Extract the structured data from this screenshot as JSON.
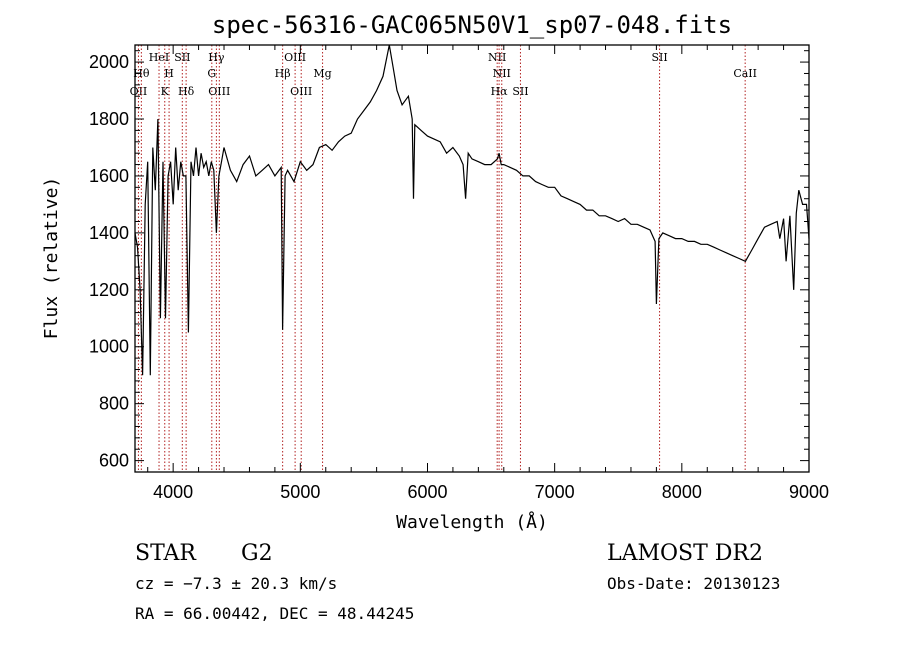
{
  "chart_data": {
    "type": "line",
    "title": "spec-56316-GAC065N50V1_sp07-048.fits",
    "xlabel": "Wavelength (Å)",
    "ylabel": "Flux (relative)",
    "xlim": [
      3700,
      9000
    ],
    "ylim": [
      560,
      2060
    ],
    "x_ticks": [
      4000,
      5000,
      6000,
      7000,
      8000,
      9000
    ],
    "y_ticks": [
      600,
      800,
      1000,
      1200,
      1400,
      1600,
      1800,
      2000
    ],
    "grid": false,
    "line_color": "#000000",
    "marker_color": "#b22222",
    "series": [
      {
        "x": [
          3700,
          3720,
          3740,
          3760,
          3780,
          3800,
          3820,
          3840,
          3860,
          3880,
          3900,
          3920,
          3940,
          3960,
          3980,
          4000,
          4020,
          4040,
          4060,
          4080,
          4100,
          4120,
          4140,
          4160,
          4180,
          4200,
          4220,
          4240,
          4260,
          4280,
          4300,
          4320,
          4340,
          4360,
          4380,
          4400,
          4450,
          4500,
          4550,
          4600,
          4650,
          4700,
          4750,
          4800,
          4850,
          4861,
          4880,
          4900,
          4950,
          5000,
          5050,
          5100,
          5150,
          5200,
          5250,
          5300,
          5350,
          5400,
          5450,
          5500,
          5550,
          5600,
          5650,
          5700,
          5730,
          5760,
          5800,
          5850,
          5880,
          5890,
          5900,
          5950,
          6000,
          6050,
          6100,
          6150,
          6200,
          6250,
          6280,
          6300,
          6320,
          6350,
          6400,
          6450,
          6500,
          6550,
          6563,
          6580,
          6600,
          6650,
          6700,
          6750,
          6800,
          6850,
          6900,
          6950,
          7000,
          7050,
          7100,
          7150,
          7200,
          7250,
          7300,
          7350,
          7400,
          7450,
          7500,
          7550,
          7600,
          7650,
          7700,
          7750,
          7790,
          7800,
          7820,
          7850,
          7900,
          7950,
          8000,
          8050,
          8100,
          8150,
          8200,
          8250,
          8300,
          8350,
          8400,
          8450,
          8500,
          8550,
          8600,
          8650,
          8700,
          8750,
          8770,
          8800,
          8820,
          8850,
          8880,
          8900,
          8920,
          8950,
          8980,
          9000
        ],
        "y": [
          1400,
          1350,
          1200,
          900,
          1500,
          1650,
          900,
          1700,
          1550,
          1800,
          1100,
          1650,
          1100,
          1600,
          1650,
          1500,
          1700,
          1550,
          1650,
          1600,
          1600,
          1050,
          1650,
          1600,
          1700,
          1600,
          1680,
          1630,
          1650,
          1600,
          1650,
          1620,
          1400,
          1600,
          1650,
          1700,
          1620,
          1580,
          1640,
          1670,
          1600,
          1620,
          1640,
          1600,
          1630,
          1060,
          1600,
          1620,
          1580,
          1650,
          1620,
          1640,
          1700,
          1710,
          1690,
          1720,
          1740,
          1750,
          1800,
          1830,
          1860,
          1900,
          1950,
          2060,
          1980,
          1900,
          1850,
          1880,
          1800,
          1520,
          1780,
          1760,
          1740,
          1730,
          1720,
          1680,
          1700,
          1670,
          1640,
          1520,
          1680,
          1660,
          1650,
          1640,
          1640,
          1660,
          1680,
          1640,
          1640,
          1630,
          1620,
          1600,
          1600,
          1580,
          1570,
          1560,
          1560,
          1530,
          1520,
          1510,
          1500,
          1480,
          1480,
          1460,
          1460,
          1450,
          1440,
          1450,
          1430,
          1430,
          1420,
          1410,
          1370,
          1150,
          1380,
          1400,
          1390,
          1380,
          1380,
          1370,
          1370,
          1360,
          1360,
          1350,
          1340,
          1330,
          1320,
          1310,
          1300,
          1340,
          1380,
          1420,
          1430,
          1440,
          1380,
          1450,
          1300,
          1460,
          1200,
          1470,
          1550,
          1500,
          1500,
          1380
        ]
      }
    ],
    "line_markers": [
      {
        "wl": 3727,
        "label": "OII",
        "row": 3
      },
      {
        "wl": 3750,
        "label": "Hθ",
        "row": 2
      },
      {
        "wl": 3889,
        "label": "HeI",
        "row": 1
      },
      {
        "wl": 3934,
        "label": "K",
        "row": 3
      },
      {
        "wl": 3968,
        "label": "H",
        "row": 2
      },
      {
        "wl": 4072,
        "label": "SII",
        "row": 1
      },
      {
        "wl": 4102,
        "label": "Hδ",
        "row": 3
      },
      {
        "wl": 4304,
        "label": "G",
        "row": 2
      },
      {
        "wl": 4340,
        "label": "Hγ",
        "row": 1
      },
      {
        "wl": 4363,
        "label": "OIII",
        "row": 3
      },
      {
        "wl": 4861,
        "label": "Hβ",
        "row": 2
      },
      {
        "wl": 4959,
        "label": "OIII",
        "row": 1
      },
      {
        "wl": 5007,
        "label": "OIII",
        "row": 3
      },
      {
        "wl": 5175,
        "label": "Mg",
        "row": 2
      },
      {
        "wl": 6548,
        "label": "NII",
        "row": 1
      },
      {
        "wl": 6563,
        "label": "Hα",
        "row": 3
      },
      {
        "wl": 6584,
        "label": "NII",
        "row": 2
      },
      {
        "wl": 6731,
        "label": "SII",
        "row": 3
      },
      {
        "wl": 7825,
        "label": "SII",
        "row": 1
      },
      {
        "wl": 8498,
        "label": "CaII",
        "row": 2
      }
    ]
  },
  "info": {
    "class_label": "STAR",
    "subclass_label": "G2",
    "survey": "LAMOST DR2",
    "cz": "cz = −7.3 ± 20.3 km/s",
    "obs_date": "Obs-Date: 20130123",
    "coords": "RA =  66.00442, DEC =  48.44245"
  }
}
